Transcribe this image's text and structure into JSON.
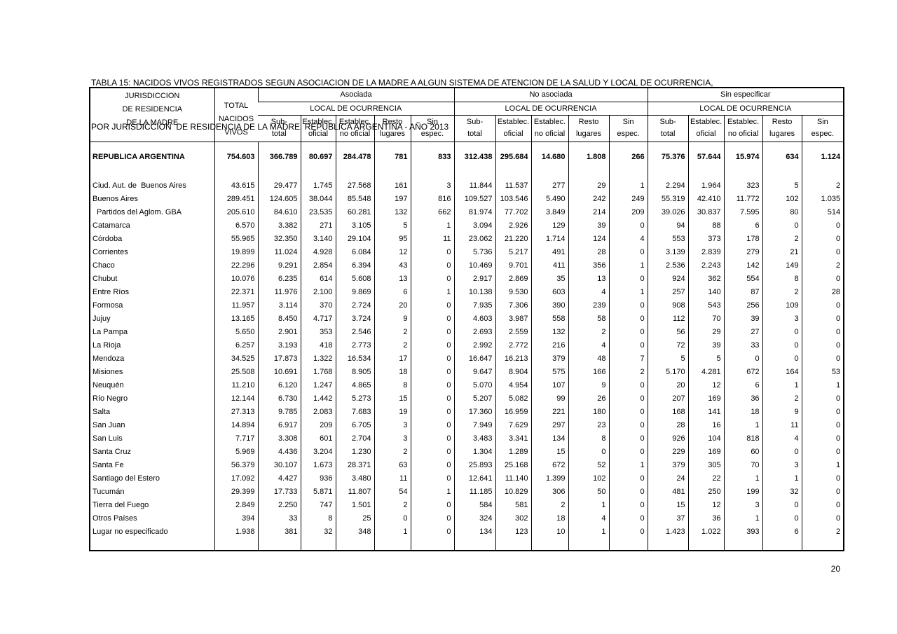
{
  "title": {
    "line1": "TABLA 15: NACIDOS VIVOS REGISTRADOS SEGUN ASOCIACION DE LA MADRE A ALGUN SISTEMA DE ATENCION DE LA SALUD Y LOCAL DE OCURRENCIA,",
    "line2": "POR JURISDICCION  DE RESIDENCIA DE LA MADRE. REPUBLICA ARGENTINA - AÑO 2013"
  },
  "page": {
    "page_number": "20"
  },
  "table": {
    "corner": {
      "line1": "JURISDICCION",
      "line2": "DE RESIDENCIA",
      "line3": "DE LA MADRE"
    },
    "total_col": {
      "line1": "TOTAL",
      "line2": "NACIDOS",
      "line3": "VIVOS"
    },
    "groups": [
      {
        "label": "Asociada",
        "sub": "LOCAL DE OCURRENCIA"
      },
      {
        "label": "No asociada",
        "sub": "LOCAL DE OCURRENCIA"
      },
      {
        "label": "Sin especificar",
        "sub": "LOCAL DE OCURRENCIA"
      }
    ],
    "columns": [
      {
        "line1": "Sub-",
        "line2": "total"
      },
      {
        "line1": "Establec.",
        "line2": "oficial"
      },
      {
        "line1": "Establec.",
        "line2": "no oficial"
      },
      {
        "line1": "Resto",
        "line2": "lugares"
      },
      {
        "line1": "Sin",
        "line2": "espec."
      }
    ],
    "rows": [
      {
        "spacer": "sm"
      },
      {
        "name": "REPUBLICA ARGENTINA",
        "bold": true,
        "values": [
          "754.603",
          "366.789",
          "80.697",
          "284.478",
          "781",
          "833",
          "312.438",
          "295.684",
          "14.680",
          "1.808",
          "266",
          "75.376",
          "57.644",
          "15.974",
          "634",
          "1.124"
        ]
      },
      {
        "spacer": "md"
      },
      {
        "name": "Ciud. Aut. de  Buenos Aires",
        "values": [
          "43.615",
          "29.477",
          "1.745",
          "27.568",
          "161",
          "3",
          "11.844",
          "11.537",
          "277",
          "29",
          "1",
          "2.294",
          "1.964",
          "323",
          "5",
          "2"
        ]
      },
      {
        "name": "Buenos Aires",
        "values": [
          "289.451",
          "124.605",
          "38.044",
          "85.548",
          "197",
          "816",
          "109.527",
          "103.546",
          "5.490",
          "242",
          "249",
          "55.319",
          "42.410",
          "11.772",
          "102",
          "1.035"
        ]
      },
      {
        "name": "Partidos del Aglom. GBA",
        "indent": true,
        "values": [
          "205.610",
          "84.610",
          "23.535",
          "60.281",
          "132",
          "662",
          "81.974",
          "77.702",
          "3.849",
          "214",
          "209",
          "39.026",
          "30.837",
          "7.595",
          "80",
          "514"
        ]
      },
      {
        "name": "Catamarca",
        "values": [
          "6.570",
          "3.382",
          "271",
          "3.105",
          "5",
          "1",
          "3.094",
          "2.926",
          "129",
          "39",
          "0",
          "94",
          "88",
          "6",
          "0",
          "0"
        ]
      },
      {
        "name": "Córdoba",
        "values": [
          "55.965",
          "32.350",
          "3.140",
          "29.104",
          "95",
          "11",
          "23.062",
          "21.220",
          "1.714",
          "124",
          "4",
          "553",
          "373",
          "178",
          "2",
          "0"
        ]
      },
      {
        "name": "Corrientes",
        "values": [
          "19.899",
          "11.024",
          "4.928",
          "6.084",
          "12",
          "0",
          "5.736",
          "5.217",
          "491",
          "28",
          "0",
          "3.139",
          "2.839",
          "279",
          "21",
          "0"
        ]
      },
      {
        "name": "Chaco",
        "values": [
          "22.296",
          "9.291",
          "2.854",
          "6.394",
          "43",
          "0",
          "10.469",
          "9.701",
          "411",
          "356",
          "1",
          "2.536",
          "2.243",
          "142",
          "149",
          "2"
        ]
      },
      {
        "name": "Chubut",
        "values": [
          "10.076",
          "6.235",
          "614",
          "5.608",
          "13",
          "0",
          "2.917",
          "2.869",
          "35",
          "13",
          "0",
          "924",
          "362",
          "554",
          "8",
          "0"
        ]
      },
      {
        "name": "Entre Ríos",
        "values": [
          "22.371",
          "11.976",
          "2.100",
          "9.869",
          "6",
          "1",
          "10.138",
          "9.530",
          "603",
          "4",
          "1",
          "257",
          "140",
          "87",
          "2",
          "28"
        ]
      },
      {
        "name": "Formosa",
        "values": [
          "11.957",
          "3.114",
          "370",
          "2.724",
          "20",
          "0",
          "7.935",
          "7.306",
          "390",
          "239",
          "0",
          "908",
          "543",
          "256",
          "109",
          "0"
        ]
      },
      {
        "name": "Jujuy",
        "values": [
          "13.165",
          "8.450",
          "4.717",
          "3.724",
          "9",
          "0",
          "4.603",
          "3.987",
          "558",
          "58",
          "0",
          "112",
          "70",
          "39",
          "3",
          "0"
        ]
      },
      {
        "name": "La Pampa",
        "values": [
          "5.650",
          "2.901",
          "353",
          "2.546",
          "2",
          "0",
          "2.693",
          "2.559",
          "132",
          "2",
          "0",
          "56",
          "29",
          "27",
          "0",
          "0"
        ]
      },
      {
        "name": "La Rioja",
        "values": [
          "6.257",
          "3.193",
          "418",
          "2.773",
          "2",
          "0",
          "2.992",
          "2.772",
          "216",
          "4",
          "0",
          "72",
          "39",
          "33",
          "0",
          "0"
        ]
      },
      {
        "name": "Mendoza",
        "values": [
          "34.525",
          "17.873",
          "1.322",
          "16.534",
          "17",
          "0",
          "16.647",
          "16.213",
          "379",
          "48",
          "7",
          "5",
          "5",
          "0",
          "0",
          "0"
        ]
      },
      {
        "name": "Misiones",
        "values": [
          "25.508",
          "10.691",
          "1.768",
          "8.905",
          "18",
          "0",
          "9.647",
          "8.904",
          "575",
          "166",
          "2",
          "5.170",
          "4.281",
          "672",
          "164",
          "53"
        ]
      },
      {
        "name": "Neuquén",
        "values": [
          "11.210",
          "6.120",
          "1.247",
          "4.865",
          "8",
          "0",
          "5.070",
          "4.954",
          "107",
          "9",
          "0",
          "20",
          "12",
          "6",
          "1",
          "1"
        ]
      },
      {
        "name": "Río Negro",
        "values": [
          "12.144",
          "6.730",
          "1.442",
          "5.273",
          "15",
          "0",
          "5.207",
          "5.082",
          "99",
          "26",
          "0",
          "207",
          "169",
          "36",
          "2",
          "0"
        ]
      },
      {
        "name": "Salta",
        "values": [
          "27.313",
          "9.785",
          "2.083",
          "7.683",
          "19",
          "0",
          "17.360",
          "16.959",
          "221",
          "180",
          "0",
          "168",
          "141",
          "18",
          "9",
          "0"
        ]
      },
      {
        "name": "San Juan",
        "values": [
          "14.894",
          "6.917",
          "209",
          "6.705",
          "3",
          "0",
          "7.949",
          "7.629",
          "297",
          "23",
          "0",
          "28",
          "16",
          "1",
          "11",
          "0"
        ]
      },
      {
        "name": "San Luis",
        "values": [
          "7.717",
          "3.308",
          "601",
          "2.704",
          "3",
          "0",
          "3.483",
          "3.341",
          "134",
          "8",
          "0",
          "926",
          "104",
          "818",
          "4",
          "0"
        ]
      },
      {
        "name": "Santa Cruz",
        "values": [
          "5.969",
          "4.436",
          "3.204",
          "1.230",
          "2",
          "0",
          "1.304",
          "1.289",
          "15",
          "0",
          "0",
          "229",
          "169",
          "60",
          "0",
          "0"
        ]
      },
      {
        "name": "Santa Fe",
        "values": [
          "56.379",
          "30.107",
          "1.673",
          "28.371",
          "63",
          "0",
          "25.893",
          "25.168",
          "672",
          "52",
          "1",
          "379",
          "305",
          "70",
          "3",
          "1"
        ]
      },
      {
        "name": "Santiago del Estero",
        "values": [
          "17.092",
          "4.427",
          "936",
          "3.480",
          "11",
          "0",
          "12.641",
          "11.140",
          "1.399",
          "102",
          "0",
          "24",
          "22",
          "1",
          "1",
          "0"
        ]
      },
      {
        "name": "Tucumán",
        "values": [
          "29.399",
          "17.733",
          "5.871",
          "11.807",
          "54",
          "1",
          "11.185",
          "10.829",
          "306",
          "50",
          "0",
          "481",
          "250",
          "199",
          "32",
          "0"
        ]
      },
      {
        "name": "Tierra del Fuego",
        "values": [
          "2.849",
          "2.250",
          "747",
          "1.501",
          "2",
          "0",
          "584",
          "581",
          "2",
          "1",
          "0",
          "15",
          "12",
          "3",
          "0",
          "0"
        ]
      },
      {
        "name": "Otros Países",
        "values": [
          "394",
          "33",
          "8",
          "25",
          "0",
          "0",
          "324",
          "302",
          "18",
          "4",
          "0",
          "37",
          "36",
          "1",
          "0",
          "0"
        ]
      },
      {
        "name": "Lugar no especificado",
        "values": [
          "1.938",
          "381",
          "32",
          "348",
          "1",
          "0",
          "134",
          "123",
          "10",
          "1",
          "0",
          "1.423",
          "1.022",
          "393",
          "6",
          "2"
        ]
      },
      {
        "spacer": "lg"
      }
    ]
  }
}
